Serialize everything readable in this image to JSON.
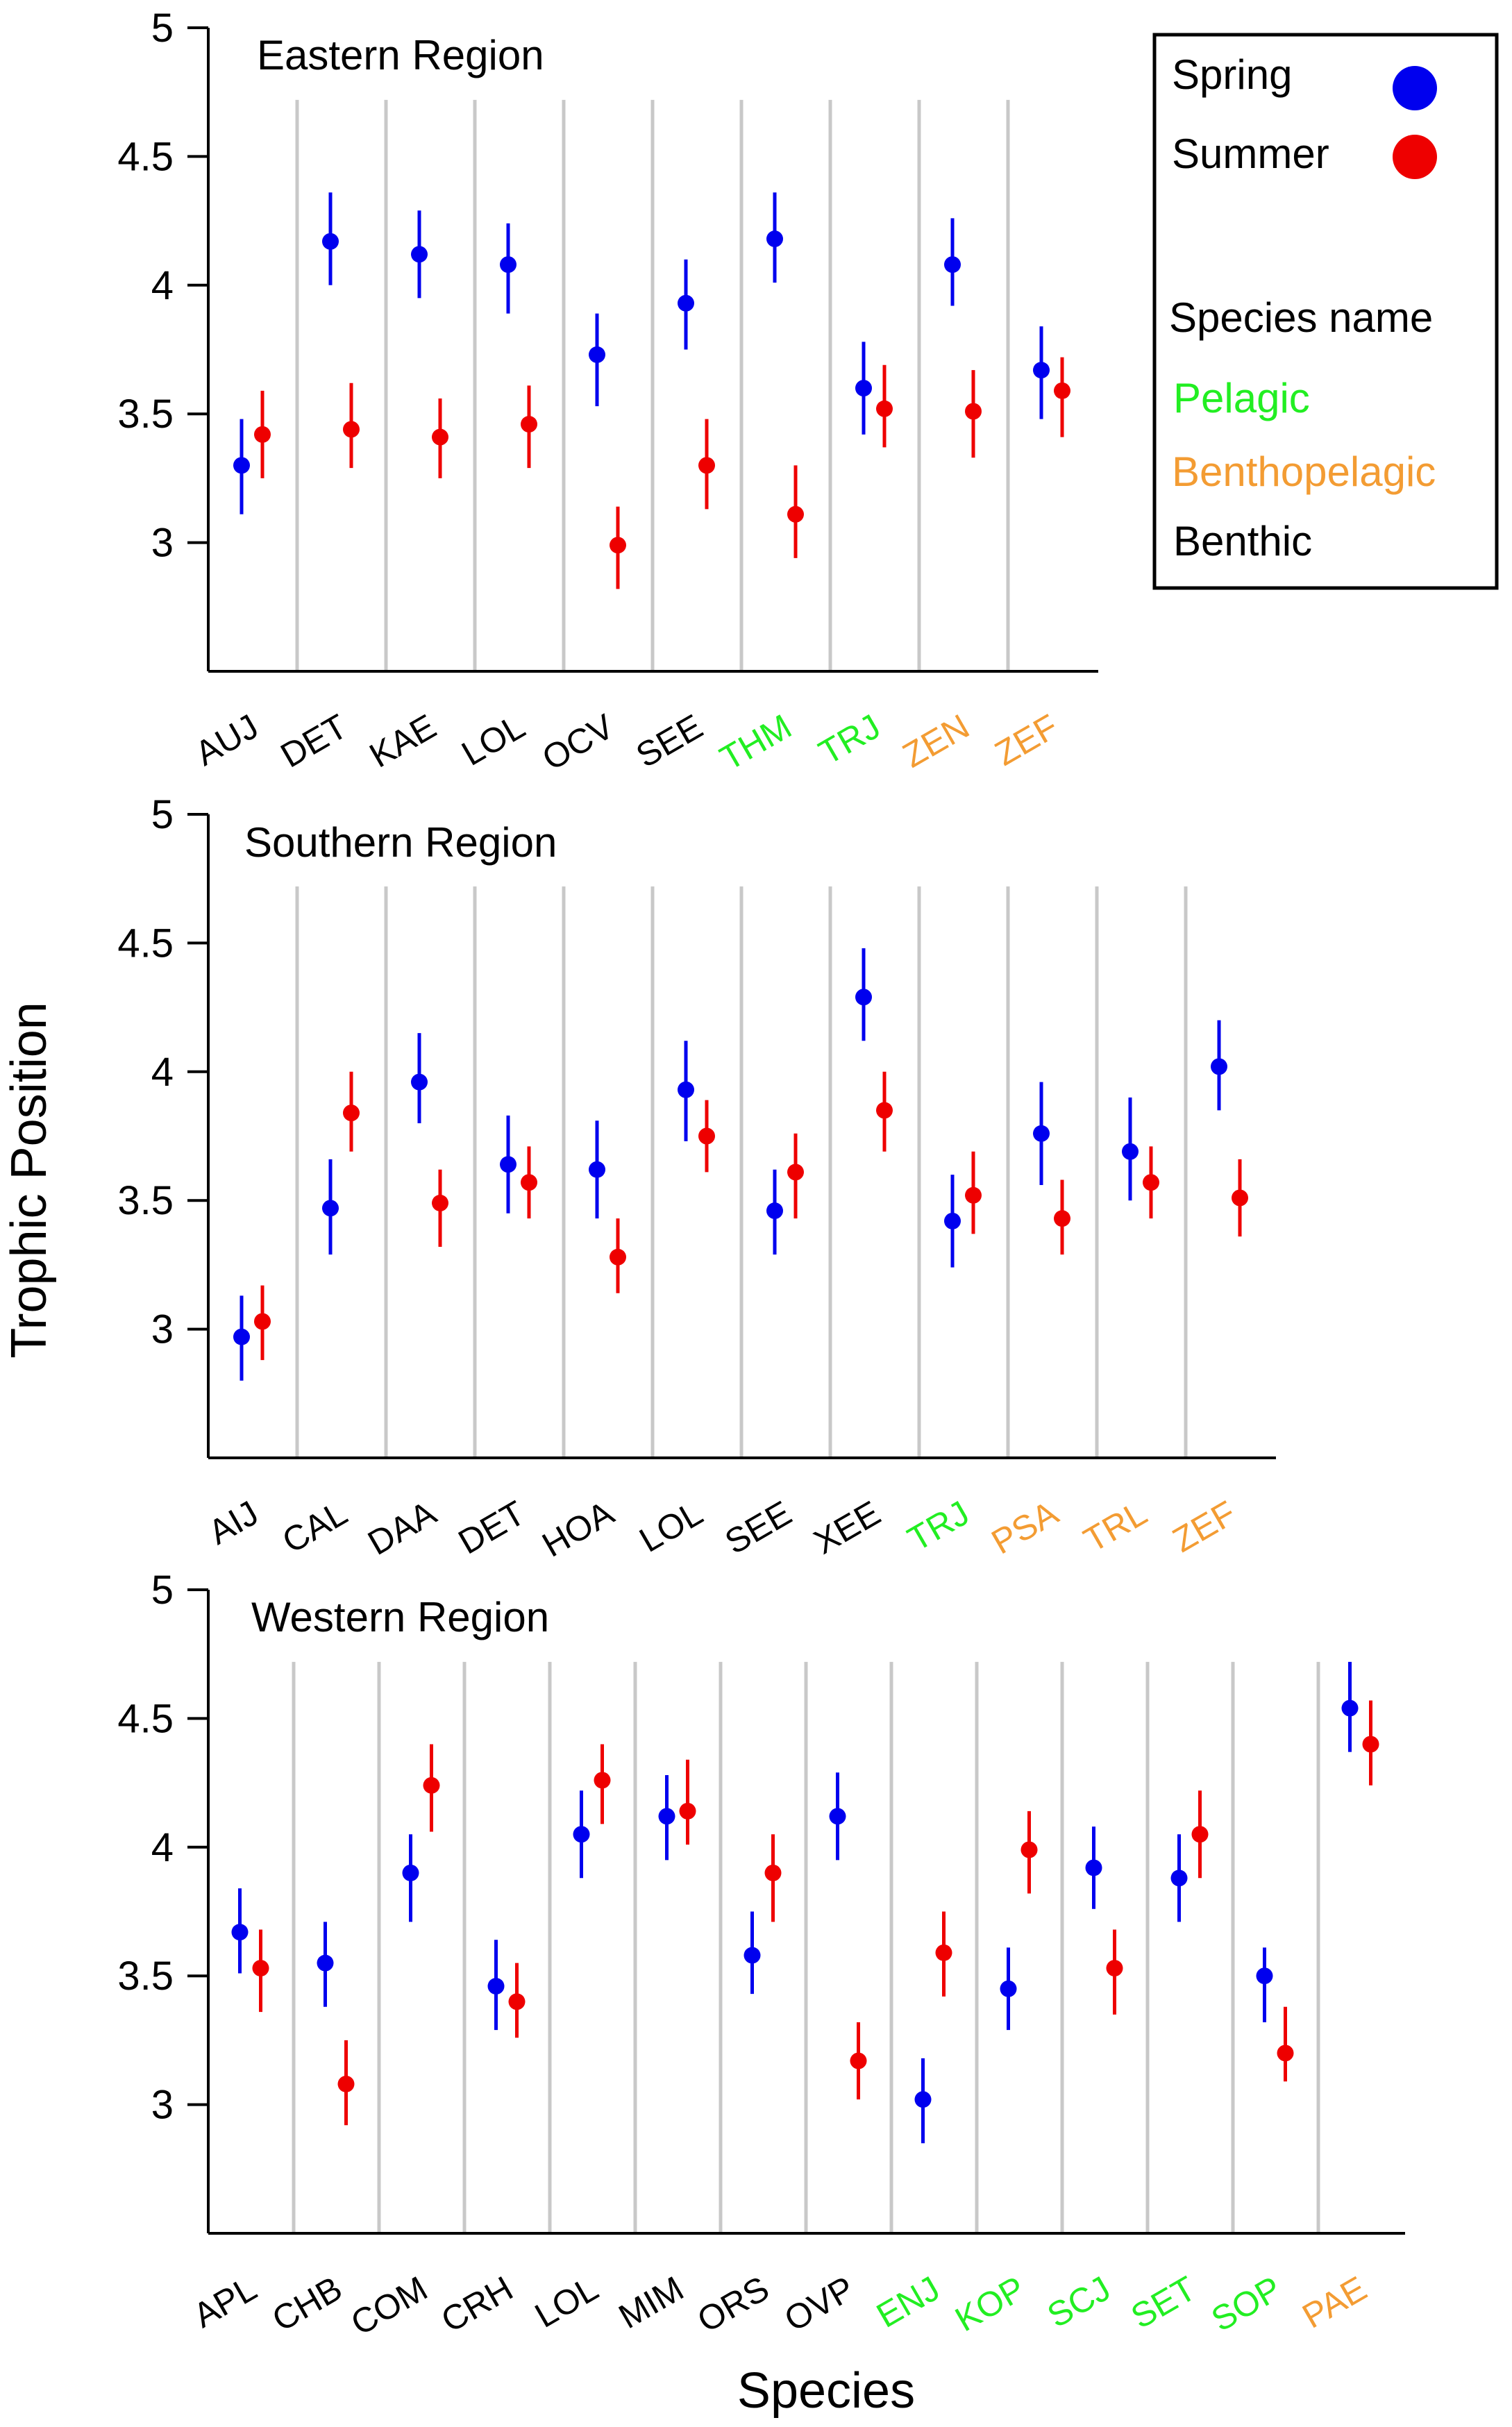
{
  "ylabel": "Trophic Position",
  "xlabel": "Species",
  "legend": {
    "spring_label": "Spring",
    "summer_label": "Summer",
    "species_name_label": "Species name",
    "pelagic_label": "Pelagic",
    "benthopelagic_label": "Benthopelagic",
    "benthic_label": "Benthic"
  },
  "colors": {
    "spring": "#0000ee",
    "summer": "#ee0000",
    "pelagic": "#22ee22",
    "benthopelagic": "#f39c33",
    "benthic": "#000000",
    "separator": "#c8c8c8",
    "axis": "#000000"
  },
  "chart_data": [
    {
      "type": "scatter",
      "title": "Eastern Region",
      "ylim": [
        2.5,
        5
      ],
      "yticks": [
        "3",
        "3.5",
        "4",
        "4.5",
        "5"
      ],
      "legend_position": "top-right",
      "categories": [
        "AUJ",
        "DET",
        "KAE",
        "LOL",
        "OCV",
        "SEE",
        "THM",
        "TRJ",
        "ZEN",
        "ZEF"
      ],
      "habitat": [
        "benthic",
        "benthic",
        "benthic",
        "benthic",
        "benthic",
        "benthic",
        "pelagic",
        "pelagic",
        "benthopelagic",
        "benthopelagic"
      ],
      "series": [
        {
          "name": "Spring",
          "values": [
            3.3,
            4.17,
            4.12,
            4.08,
            3.73,
            3.93,
            4.18,
            3.6,
            4.08,
            3.67
          ],
          "lower": [
            3.11,
            4.0,
            3.95,
            3.89,
            3.53,
            3.75,
            4.01,
            3.42,
            3.92,
            3.48
          ],
          "upper": [
            3.48,
            4.36,
            4.29,
            4.24,
            3.89,
            4.1,
            4.36,
            3.78,
            4.26,
            3.84
          ]
        },
        {
          "name": "Summer",
          "values": [
            3.42,
            3.44,
            3.41,
            3.46,
            2.99,
            3.3,
            3.11,
            3.52,
            3.51,
            3.59
          ],
          "lower": [
            3.25,
            3.29,
            3.25,
            3.29,
            2.82,
            3.13,
            2.94,
            3.37,
            3.33,
            3.41
          ],
          "upper": [
            3.59,
            3.62,
            3.56,
            3.61,
            3.14,
            3.48,
            3.3,
            3.69,
            3.67,
            3.72
          ]
        }
      ]
    },
    {
      "type": "scatter",
      "title": "Southern Region",
      "ylim": [
        2.5,
        5
      ],
      "yticks": [
        "3",
        "3.5",
        "4",
        "4.5",
        "5"
      ],
      "categories": [
        "AIJ",
        "CAL",
        "DAA",
        "DET",
        "HOA",
        "LOL",
        "SEE",
        "XEE",
        "TRJ",
        "PSA",
        "TRL",
        "ZEF"
      ],
      "habitat": [
        "benthic",
        "benthic",
        "benthic",
        "benthic",
        "benthic",
        "benthic",
        "benthic",
        "benthic",
        "pelagic",
        "benthopelagic",
        "benthopelagic",
        "benthopelagic"
      ],
      "series": [
        {
          "name": "Spring",
          "values": [
            2.97,
            3.47,
            3.96,
            3.64,
            3.62,
            3.93,
            3.46,
            4.29,
            3.42,
            3.76,
            3.69,
            4.02
          ],
          "lower": [
            2.8,
            3.29,
            3.8,
            3.45,
            3.43,
            3.73,
            3.29,
            4.12,
            3.24,
            3.56,
            3.5,
            3.85
          ],
          "upper": [
            3.13,
            3.66,
            4.15,
            3.83,
            3.81,
            4.12,
            3.62,
            4.48,
            3.6,
            3.96,
            3.9,
            4.2
          ]
        },
        {
          "name": "Summer",
          "values": [
            3.03,
            3.84,
            3.49,
            3.57,
            3.28,
            3.75,
            3.61,
            3.85,
            3.52,
            3.43,
            3.57,
            3.51
          ],
          "lower": [
            2.88,
            3.69,
            3.32,
            3.43,
            3.14,
            3.61,
            3.43,
            3.69,
            3.37,
            3.29,
            3.43,
            3.36
          ],
          "upper": [
            3.17,
            4.0,
            3.62,
            3.71,
            3.43,
            3.89,
            3.76,
            4.0,
            3.69,
            3.58,
            3.71,
            3.66
          ]
        }
      ]
    },
    {
      "type": "scatter",
      "title": "Western Region",
      "ylim": [
        2.5,
        5
      ],
      "yticks": [
        "3",
        "3.5",
        "4",
        "4.5",
        "5"
      ],
      "categories": [
        "APL",
        "CHB",
        "COM",
        "CRH",
        "LOL",
        "MIM",
        "ORS",
        "OVP",
        "ENJ",
        "KOP",
        "SCJ",
        "SET",
        "SOP",
        "PAE"
      ],
      "habitat": [
        "benthic",
        "benthic",
        "benthic",
        "benthic",
        "benthic",
        "benthic",
        "benthic",
        "benthic",
        "pelagic",
        "pelagic",
        "pelagic",
        "pelagic",
        "pelagic",
        "benthopelagic"
      ],
      "series": [
        {
          "name": "Spring",
          "values": [
            3.67,
            3.55,
            3.9,
            3.46,
            4.05,
            4.12,
            3.58,
            4.12,
            3.02,
            3.45,
            3.92,
            3.88,
            3.5,
            4.54
          ],
          "lower": [
            3.51,
            3.38,
            3.71,
            3.29,
            3.88,
            3.95,
            3.43,
            3.95,
            2.85,
            3.29,
            3.76,
            3.71,
            3.32,
            4.37
          ],
          "upper": [
            3.84,
            3.71,
            4.05,
            3.64,
            4.22,
            4.28,
            3.75,
            4.29,
            3.18,
            3.61,
            4.08,
            4.05,
            3.61,
            4.72
          ]
        },
        {
          "name": "Summer",
          "values": [
            3.53,
            3.08,
            4.24,
            3.4,
            4.26,
            4.14,
            3.9,
            3.17,
            3.59,
            3.99,
            3.53,
            4.05,
            3.2,
            4.4
          ],
          "lower": [
            3.36,
            2.92,
            4.06,
            3.26,
            4.09,
            4.01,
            3.71,
            3.02,
            3.42,
            3.82,
            3.35,
            3.88,
            3.09,
            4.24
          ],
          "upper": [
            3.68,
            3.25,
            4.4,
            3.55,
            4.4,
            4.34,
            4.05,
            3.32,
            3.75,
            4.14,
            3.68,
            4.22,
            3.38,
            4.57
          ]
        }
      ]
    }
  ]
}
